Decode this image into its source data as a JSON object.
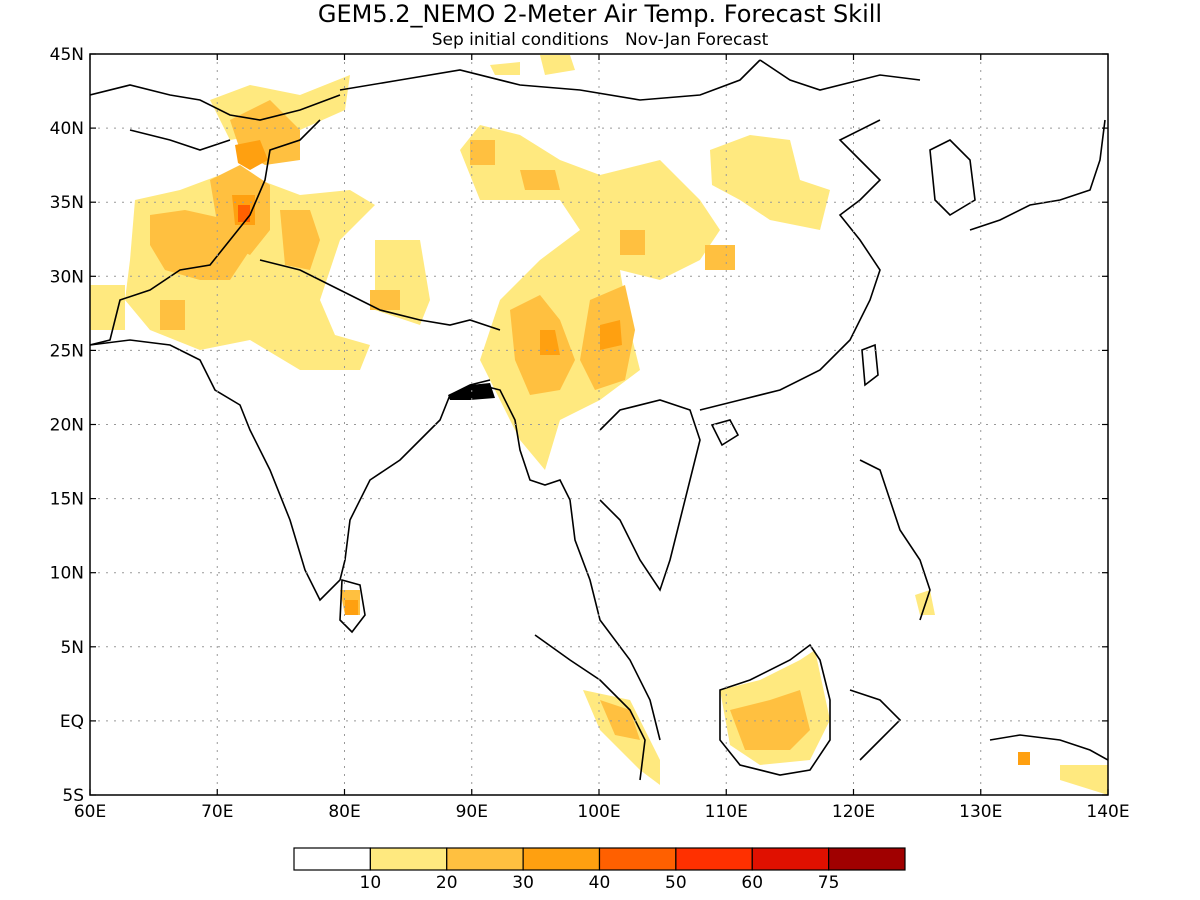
{
  "title": "GEM5.2_NEMO 2-Meter Air Temp. Forecast Skill",
  "subtitle": "Sep initial conditions   Nov-Jan Forecast",
  "map": {
    "projection": "cylindrical",
    "lon_range": [
      60,
      140
    ],
    "lat_range": [
      -5,
      45
    ],
    "grid": "dotted",
    "x_ticks": [
      "60E",
      "70E",
      "80E",
      "90E",
      "100E",
      "110E",
      "120E",
      "130E",
      "140E"
    ],
    "y_ticks": [
      "5S",
      "EQ",
      "5N",
      "10N",
      "15N",
      "20N",
      "25N",
      "30N",
      "35N",
      "40N",
      "45N"
    ]
  },
  "colorbar": {
    "colors": [
      "#ffffff",
      "#ffe97f",
      "#ffc040",
      "#ffa010",
      "#ff6000",
      "#ff3000",
      "#e01000",
      "#a00000"
    ],
    "labels": [
      "10",
      "20",
      "30",
      "40",
      "50",
      "60",
      "75"
    ]
  }
}
